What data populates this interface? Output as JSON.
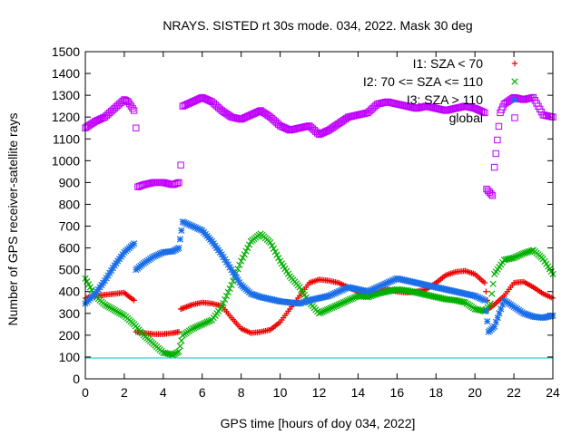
{
  "chart_data": {
    "type": "scatter",
    "title": "NRAYS. SISTED rt 30s mode. 034, 2022. Mask 30 deg",
    "xlabel": "GPS time [hours of doy 034, 2022]",
    "ylabel": "Number of GPS receiver-satellite rays",
    "xlim": [
      0,
      24
    ],
    "ylim": [
      0,
      1500
    ],
    "xticks": [
      "0",
      "2",
      "4",
      "6",
      "8",
      "10",
      "12",
      "14",
      "16",
      "18",
      "20",
      "22",
      "24"
    ],
    "yticks": [
      "0",
      "100",
      "200",
      "300",
      "400",
      "500",
      "600",
      "700",
      "800",
      "900",
      "1000",
      "1100",
      "1200",
      "1300",
      "1400",
      "1500"
    ],
    "reference_line": {
      "y": 100,
      "color": "#00c0c0"
    },
    "legend_position": "top-right",
    "series": [
      {
        "name": "I1: SZA < 70",
        "marker": "+",
        "color": "#ee0000",
        "points": [
          [
            0,
            370
          ],
          [
            0.5,
            380
          ],
          [
            1,
            385
          ],
          [
            1.5,
            390
          ],
          [
            2,
            395
          ],
          [
            2.2,
            380
          ],
          [
            2.5,
            360
          ],
          [
            2.6,
            215
          ],
          [
            3,
            210
          ],
          [
            3.5,
            205
          ],
          [
            4,
            205
          ],
          [
            4.5,
            210
          ],
          [
            4.8,
            215
          ],
          [
            4.9,
            320
          ],
          [
            5.5,
            340
          ],
          [
            6,
            350
          ],
          [
            6.5,
            345
          ],
          [
            7,
            335
          ],
          [
            7.5,
            280
          ],
          [
            8,
            230
          ],
          [
            8.5,
            210
          ],
          [
            9,
            215
          ],
          [
            9.5,
            225
          ],
          [
            10,
            260
          ],
          [
            10.5,
            320
          ],
          [
            11,
            380
          ],
          [
            11.5,
            440
          ],
          [
            12,
            455
          ],
          [
            12.5,
            450
          ],
          [
            13,
            440
          ],
          [
            13.5,
            420
          ],
          [
            14,
            400
          ],
          [
            14.5,
            395
          ],
          [
            15,
            400
          ],
          [
            15.5,
            410
          ],
          [
            16,
            400
          ],
          [
            16.5,
            395
          ],
          [
            17,
            400
          ],
          [
            17.5,
            410
          ],
          [
            18,
            440
          ],
          [
            18.5,
            475
          ],
          [
            19,
            490
          ],
          [
            19.5,
            495
          ],
          [
            20,
            480
          ],
          [
            20.5,
            440
          ],
          [
            20.7,
            320
          ],
          [
            21,
            340
          ],
          [
            21.5,
            380
          ],
          [
            22,
            440
          ],
          [
            22.5,
            445
          ],
          [
            23,
            420
          ],
          [
            23.5,
            390
          ],
          [
            24,
            370
          ]
        ]
      },
      {
        "name": "I2: 70 <= SZA <= 110",
        "marker": "x",
        "color": "#00b000",
        "points": [
          [
            0,
            460
          ],
          [
            0.5,
            380
          ],
          [
            1,
            340
          ],
          [
            1.5,
            315
          ],
          [
            2,
            290
          ],
          [
            2.5,
            250
          ],
          [
            3,
            200
          ],
          [
            3.5,
            160
          ],
          [
            4,
            120
          ],
          [
            4.5,
            110
          ],
          [
            4.8,
            125
          ],
          [
            5,
            200
          ],
          [
            5.5,
            230
          ],
          [
            6,
            250
          ],
          [
            6.5,
            270
          ],
          [
            7,
            330
          ],
          [
            7.5,
            430
          ],
          [
            8,
            540
          ],
          [
            8.5,
            630
          ],
          [
            9,
            665
          ],
          [
            9.5,
            625
          ],
          [
            10,
            540
          ],
          [
            10.5,
            470
          ],
          [
            11,
            420
          ],
          [
            11.5,
            350
          ],
          [
            12,
            300
          ],
          [
            12.5,
            320
          ],
          [
            13,
            340
          ],
          [
            13.5,
            360
          ],
          [
            14,
            380
          ],
          [
            14.5,
            375
          ],
          [
            15,
            390
          ],
          [
            15.5,
            400
          ],
          [
            16,
            410
          ],
          [
            16.5,
            405
          ],
          [
            17,
            395
          ],
          [
            17.5,
            385
          ],
          [
            18,
            375
          ],
          [
            18.5,
            365
          ],
          [
            19,
            360
          ],
          [
            19.5,
            350
          ],
          [
            20,
            320
          ],
          [
            20.5,
            310
          ],
          [
            20.8,
            345
          ],
          [
            21,
            480
          ],
          [
            21.5,
            545
          ],
          [
            22,
            555
          ],
          [
            22.5,
            575
          ],
          [
            23,
            590
          ],
          [
            23.5,
            550
          ],
          [
            24,
            480
          ]
        ]
      },
      {
        "name": "I3: SZA > 110",
        "marker": "*",
        "color": "#1a6ee8",
        "points": [
          [
            0,
            345
          ],
          [
            0.5,
            390
          ],
          [
            1,
            450
          ],
          [
            1.5,
            520
          ],
          [
            2,
            580
          ],
          [
            2.5,
            620
          ],
          [
            2.6,
            500
          ],
          [
            3,
            530
          ],
          [
            3.5,
            560
          ],
          [
            4,
            580
          ],
          [
            4.5,
            585
          ],
          [
            4.8,
            600
          ],
          [
            5,
            720
          ],
          [
            5.5,
            700
          ],
          [
            6,
            680
          ],
          [
            6.5,
            630
          ],
          [
            7,
            570
          ],
          [
            7.5,
            500
          ],
          [
            8,
            430
          ],
          [
            8.5,
            390
          ],
          [
            9,
            375
          ],
          [
            9.5,
            365
          ],
          [
            10,
            355
          ],
          [
            10.5,
            350
          ],
          [
            11,
            345
          ],
          [
            11.5,
            360
          ],
          [
            12,
            370
          ],
          [
            12.5,
            380
          ],
          [
            13,
            400
          ],
          [
            13.5,
            420
          ],
          [
            14,
            410
          ],
          [
            14.5,
            400
          ],
          [
            15,
            420
          ],
          [
            15.5,
            440
          ],
          [
            16,
            460
          ],
          [
            16.5,
            450
          ],
          [
            17,
            440
          ],
          [
            17.5,
            430
          ],
          [
            18,
            420
          ],
          [
            18.5,
            410
          ],
          [
            19,
            400
          ],
          [
            19.5,
            390
          ],
          [
            20,
            380
          ],
          [
            20.5,
            360
          ],
          [
            20.7,
            215
          ],
          [
            21,
            240
          ],
          [
            21.5,
            360
          ],
          [
            22,
            330
          ],
          [
            22.5,
            300
          ],
          [
            23,
            285
          ],
          [
            23.5,
            280
          ],
          [
            24,
            290
          ]
        ]
      },
      {
        "name": "global",
        "marker": "square",
        "color": "#c000ff",
        "points": [
          [
            0,
            1150
          ],
          [
            0.5,
            1180
          ],
          [
            1,
            1200
          ],
          [
            1.5,
            1240
          ],
          [
            2,
            1280
          ],
          [
            2.2,
            1270
          ],
          [
            2.5,
            1230
          ],
          [
            2.6,
            1150
          ],
          [
            2.7,
            880
          ],
          [
            3,
            890
          ],
          [
            3.5,
            900
          ],
          [
            4,
            900
          ],
          [
            4.5,
            890
          ],
          [
            4.8,
            900
          ],
          [
            4.9,
            980
          ],
          [
            5,
            1250
          ],
          [
            5.5,
            1270
          ],
          [
            6,
            1290
          ],
          [
            6.5,
            1270
          ],
          [
            7,
            1230
          ],
          [
            7.5,
            1200
          ],
          [
            8,
            1190
          ],
          [
            8.5,
            1210
          ],
          [
            9,
            1230
          ],
          [
            9.5,
            1200
          ],
          [
            10,
            1160
          ],
          [
            10.5,
            1140
          ],
          [
            11,
            1150
          ],
          [
            11.5,
            1160
          ],
          [
            12,
            1120
          ],
          [
            12.5,
            1140
          ],
          [
            13,
            1170
          ],
          [
            13.5,
            1200
          ],
          [
            14,
            1210
          ],
          [
            14.5,
            1220
          ],
          [
            15,
            1260
          ],
          [
            15.5,
            1270
          ],
          [
            16,
            1260
          ],
          [
            16.5,
            1250
          ],
          [
            17,
            1240
          ],
          [
            17.5,
            1250
          ],
          [
            18,
            1240
          ],
          [
            18.5,
            1230
          ],
          [
            19,
            1240
          ],
          [
            19.5,
            1250
          ],
          [
            20,
            1240
          ],
          [
            20.5,
            1220
          ],
          [
            20.6,
            870
          ],
          [
            20.9,
            840
          ],
          [
            21,
            970
          ],
          [
            21.3,
            1220
          ],
          [
            21.5,
            1260
          ],
          [
            22,
            1290
          ],
          [
            22.5,
            1280
          ],
          [
            23,
            1290
          ],
          [
            23.5,
            1210
          ],
          [
            24,
            1200
          ]
        ]
      }
    ]
  }
}
